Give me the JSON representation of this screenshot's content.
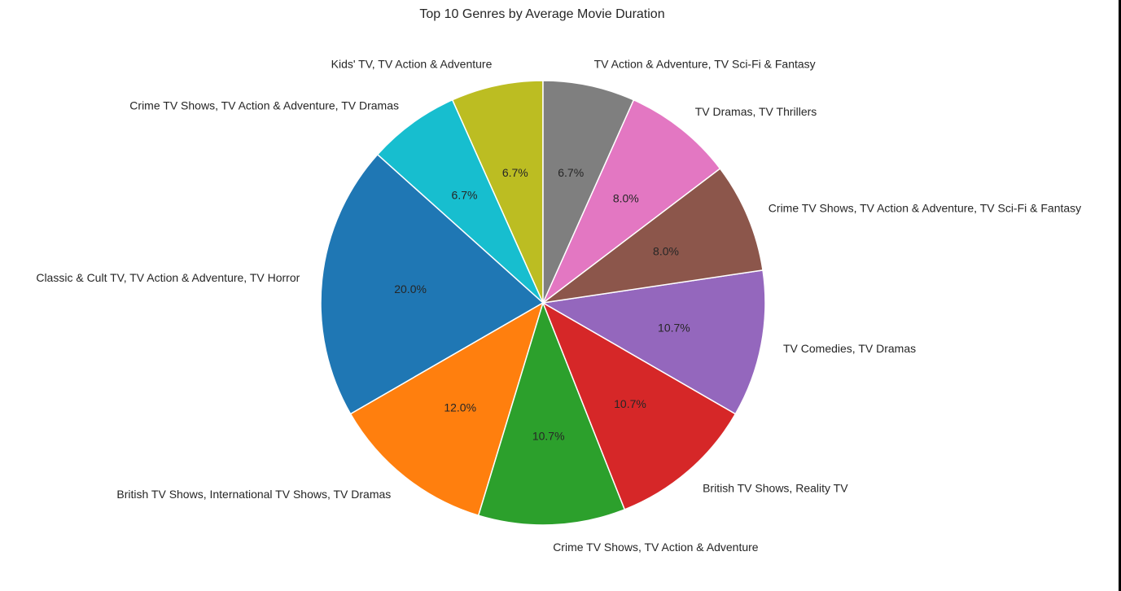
{
  "chart_data": {
    "type": "pie",
    "title": "Top 10 Genres by Average Movie Duration",
    "start_angle_deg": 90,
    "direction": "counterclockwise",
    "slices": [
      {
        "label": "Kids' TV, TV Action & Adventure",
        "value": 6.7,
        "pct_label": "6.7%",
        "color": "#bcbd22"
      },
      {
        "label": "Crime TV Shows, TV Action & Adventure, TV Dramas",
        "value": 6.7,
        "pct_label": "6.7%",
        "color": "#17becf"
      },
      {
        "label": "Classic & Cult TV, TV Action & Adventure, TV Horror",
        "value": 20.0,
        "pct_label": "20.0%",
        "color": "#1f77b4"
      },
      {
        "label": "British TV Shows, International TV Shows, TV Dramas",
        "value": 12.0,
        "pct_label": "12.0%",
        "color": "#ff7f0e"
      },
      {
        "label": "Crime TV Shows, TV Action & Adventure",
        "value": 10.7,
        "pct_label": "10.7%",
        "color": "#2ca02c"
      },
      {
        "label": "British TV Shows, Reality TV",
        "value": 10.7,
        "pct_label": "10.7%",
        "color": "#d62728"
      },
      {
        "label": "TV Comedies, TV Dramas",
        "value": 10.7,
        "pct_label": "10.7%",
        "color": "#9467bd"
      },
      {
        "label": "Crime TV Shows, TV Action & Adventure, TV Sci-Fi & Fantasy",
        "value": 8.0,
        "pct_label": "8.0%",
        "color": "#8c564b"
      },
      {
        "label": "TV Dramas, TV Thrillers",
        "value": 8.0,
        "pct_label": "8.0%",
        "color": "#e377c2"
      },
      {
        "label": "TV Action & Adventure, TV Sci-Fi & Fantasy",
        "value": 6.7,
        "pct_label": "6.7%",
        "color": "#7f7f7f"
      }
    ]
  }
}
